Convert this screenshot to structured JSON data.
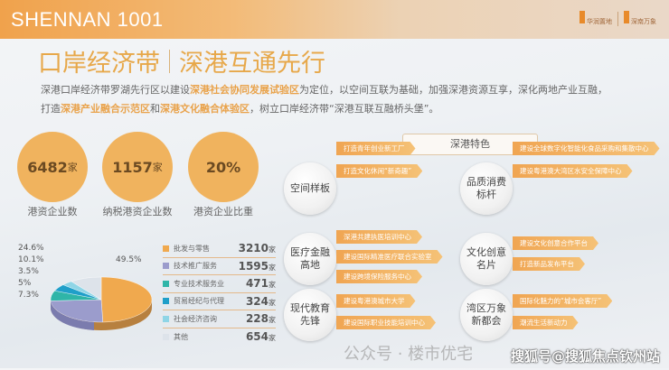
{
  "header": {
    "brand": "SHENNAN 1001",
    "logo1": "华润置地",
    "logo2": "深南万象"
  },
  "title": {
    "left": "口岸经济带",
    "right": "深港互通先行"
  },
  "intro": {
    "p1": "深港口岸经济带罗湖先行区以建设",
    "h1": "深港社会协同发展试验区",
    "p2": "为定位，以空间互联为基础，加强深港资源互享，深化两地产业互融，",
    "p3": "打造",
    "h2": "深港产业融合示范区",
    "p4": "和",
    "h3": "深港文化融合体验区",
    "p5": "，树立口岸经济带“深港互联互融桥头堡”。"
  },
  "stats": [
    {
      "value": "6482",
      "unit": "家",
      "label": "港资企业数"
    },
    {
      "value": "1157",
      "unit": "家",
      "label": "纳税港资企业数"
    },
    {
      "value": "20%",
      "unit": "",
      "label": "港资企业比重"
    }
  ],
  "chart_data": {
    "type": "pie",
    "slices": [
      {
        "name": "批发与零售",
        "count": 3210,
        "unit": "家",
        "percent": 49.5,
        "color": "#f0a94e"
      },
      {
        "name": "技术推广服务",
        "count": 1595,
        "unit": "家",
        "percent": 24.6,
        "color": "#9b9ccc"
      },
      {
        "name": "专业技术服务业",
        "count": 471,
        "unit": "家",
        "percent": 7.3,
        "color": "#2fb5a8"
      },
      {
        "name": "贸易经纪与代理",
        "count": 324,
        "unit": "家",
        "percent": 5,
        "color": "#1f9fc9"
      },
      {
        "name": "社会经济咨询",
        "count": 228,
        "unit": "家",
        "percent": 3.5,
        "color": "#8fd5e6"
      },
      {
        "name": "其他",
        "count": 654,
        "unit": "家",
        "percent": 10.1,
        "color": "#dde3ea"
      }
    ],
    "labels": [
      "49.5%",
      "24.6%",
      "10.1%",
      "3.5%",
      "5%",
      "7.3%"
    ]
  },
  "features": {
    "title": "深港特色",
    "groups": [
      {
        "name": "空间样板",
        "items": [
          "打造青年创业新工厂",
          "打造文化休闲“新奇趣”"
        ]
      },
      {
        "name": "品质消费标杆",
        "items": [
          "建设全球数字化智能化食品采购和集散中心",
          "建设粤港澳大湾区水安全保障中心"
        ]
      },
      {
        "name": "医疗金融高地",
        "items": [
          "深港共建执医培训中心",
          "建设国际精准医疗联合实验室",
          "建设跨境保险服务中心"
        ]
      },
      {
        "name": "文化创意名片",
        "items": [
          "建设文化创意合作平台",
          "打造新品发布平台"
        ]
      },
      {
        "name": "现代教育先锋",
        "items": [
          "建设粤港澳城市大学",
          "建设国际职业技能培训中心"
        ]
      },
      {
        "name": "湾区万象新都会",
        "items": [
          "国际化魅力的“城市会客厅”",
          "潮流生活新动力"
        ]
      }
    ]
  },
  "watermark": {
    "line1": "公众号 · 楼市优宅",
    "line2": "搜狐号@搜狐焦点钦州站"
  }
}
